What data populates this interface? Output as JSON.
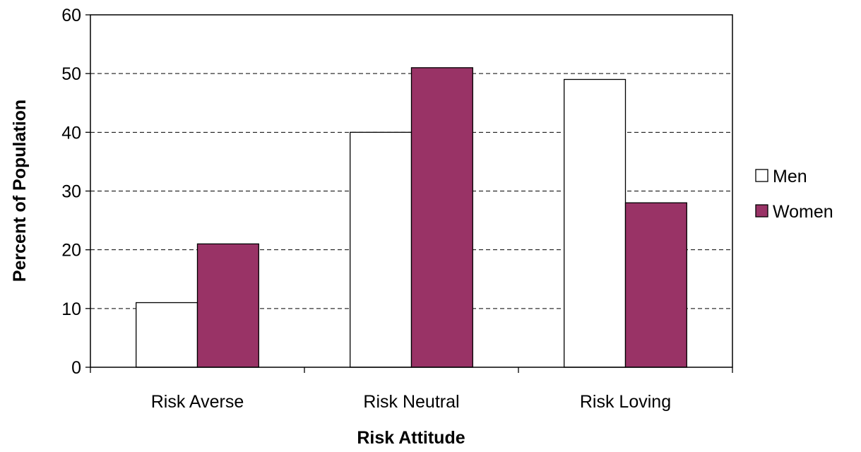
{
  "chart_data": {
    "type": "bar",
    "categories": [
      "Risk Averse",
      "Risk Neutral",
      "Risk Loving"
    ],
    "series": [
      {
        "name": "Men",
        "values": [
          11,
          40,
          49
        ],
        "color": "#ffffff"
      },
      {
        "name": "Women",
        "values": [
          21,
          51,
          28
        ],
        "color": "#993366"
      }
    ],
    "xlabel": "Risk Attitude",
    "ylabel": "Percent of Population",
    "ylim": [
      0,
      60
    ],
    "yticks": [
      0,
      10,
      20,
      30,
      40,
      50,
      60
    ],
    "grid": "horizontal dashed",
    "legend_position": "right"
  }
}
